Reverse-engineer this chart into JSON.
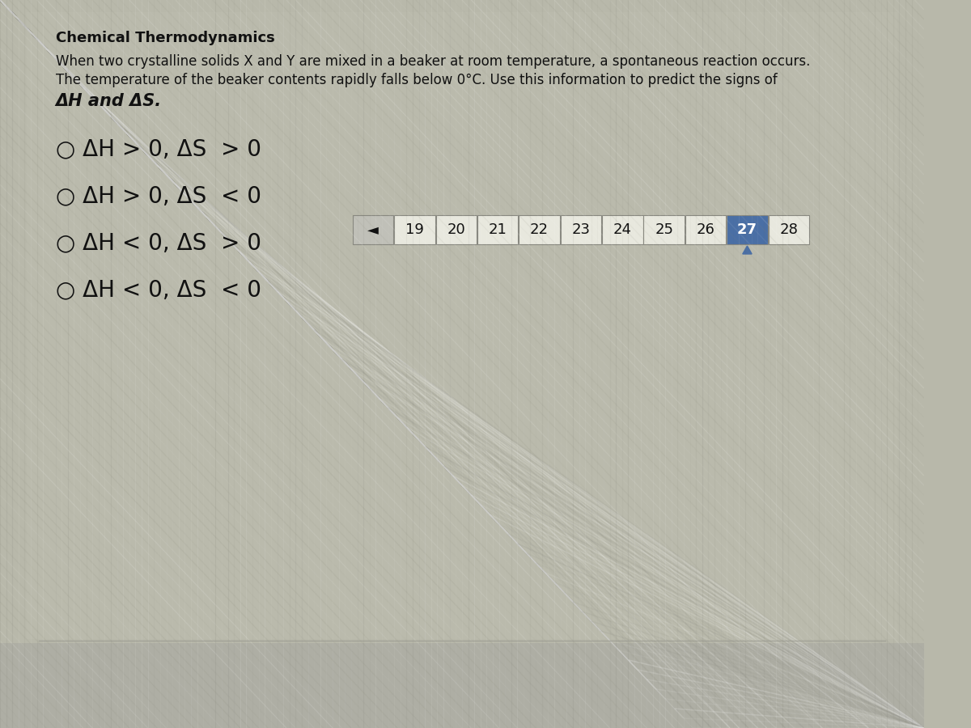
{
  "title": "Chemical Thermodynamics",
  "description_line1": "When two crystalline solids X and Y are mixed in a beaker at room temperature, a spontaneous reaction occurs.",
  "description_line2": "The temperature of the beaker contents rapidly falls below 0°C. Use this information to predict the signs of",
  "description_line3": "ΔH and ΔS.",
  "options": [
    "○ ΔH > 0, ΔS  > 0",
    "○ ΔH > 0, ΔS  < 0",
    "○ ΔH < 0, ΔS  > 0",
    "○ ΔH < 0, ΔS  < 0"
  ],
  "page_numbers": [
    "◄",
    "19",
    "20",
    "21",
    "22",
    "23",
    "24",
    "25",
    "26",
    "27",
    "28"
  ],
  "current_page": "27",
  "bg_main": "#b8b8aa",
  "bg_content": "#c8c8bc",
  "bg_footer": "#a8a8a0",
  "nav_current_bg": "#4a6fa5",
  "nav_cell_bg": "#e8e8de",
  "nav_arrow_bg": "#c0c0b8",
  "nav_border": "#888880",
  "text_color": "#111111",
  "title_fontsize": 13,
  "body_fontsize": 12,
  "option_fontsize": 20,
  "nav_fontsize": 13,
  "texture_color1": "#d0d0c0",
  "texture_color2": "#b0b0a0"
}
